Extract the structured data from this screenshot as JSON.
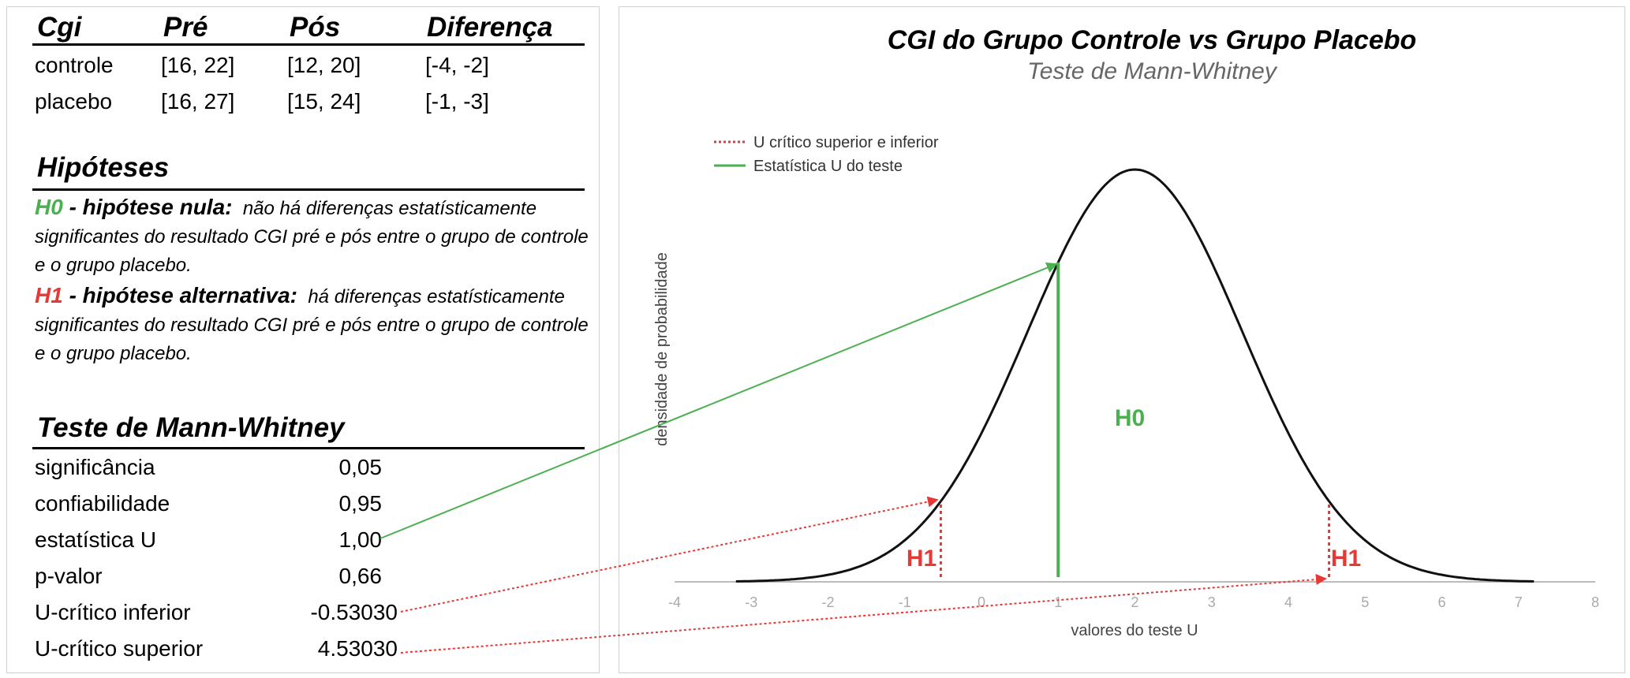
{
  "cgi_table": {
    "headers": [
      "Cgi",
      "Pré",
      "Pós",
      "Diferença"
    ],
    "rows": [
      [
        "controle",
        "[16, 22]",
        "[12, 20]",
        "[-4, -2]"
      ],
      [
        "placebo",
        "[16, 27]",
        "[15, 24]",
        "[-1, -3]"
      ]
    ]
  },
  "hypotheses": {
    "title": "Hipóteses",
    "h0_label": "H0",
    "h0_name": " - hipótese nula:",
    "h0_text": "não há diferenças estatísticamente significantes do resultado CGI pré e pós entre o grupo de controle e o grupo placebo.",
    "h1_label": "H1",
    "h1_name": " - hipótese alternativa:",
    "h1_text": "há diferenças estatísticamente significantes do resultado CGI pré e pós entre o grupo de controle e o grupo placebo."
  },
  "test": {
    "title": "Teste de Mann-Whitney",
    "rows": [
      {
        "label": "significância",
        "value": "0,05"
      },
      {
        "label": "confiabilidade",
        "value": "0,95"
      },
      {
        "label": "estatística U",
        "value": "1,00"
      },
      {
        "label": "p-valor",
        "value": "0,66"
      },
      {
        "label": "U-crítico inferior",
        "value": "-0.53030"
      },
      {
        "label": "U-crítico superior",
        "value": "4.53030"
      }
    ]
  },
  "colors": {
    "h0": "#4caf50",
    "h1": "#e53935",
    "curve": "#111111",
    "axis": "#bbbbbb"
  },
  "chart_data": {
    "type": "line",
    "title": "CGI do Grupo Controle vs Grupo Placebo",
    "subtitle": "Teste de Mann-Whitney",
    "xlabel": "valores do teste U",
    "ylabel": "densidade de probabilidade",
    "xlim": [
      -4,
      8
    ],
    "xticks": [
      -4,
      -3,
      -2,
      -1,
      0,
      1,
      2,
      3,
      4,
      5,
      6,
      7,
      8
    ],
    "curve": {
      "mean": 2,
      "sd": 1.4,
      "x_range": [
        -3.2,
        7.2
      ]
    },
    "u_statistic": 1.0,
    "u_critical_lower": -0.5303,
    "u_critical_upper": 4.5303,
    "legend": [
      {
        "name": "U crítico superior e inferior",
        "style": "dotted",
        "color": "#e53935"
      },
      {
        "name": "Estatística U do teste",
        "style": "solid",
        "color": "#4caf50"
      }
    ],
    "legend_position": "top-left",
    "annotations": [
      "H0",
      "H1",
      "H1"
    ],
    "grid": false
  }
}
